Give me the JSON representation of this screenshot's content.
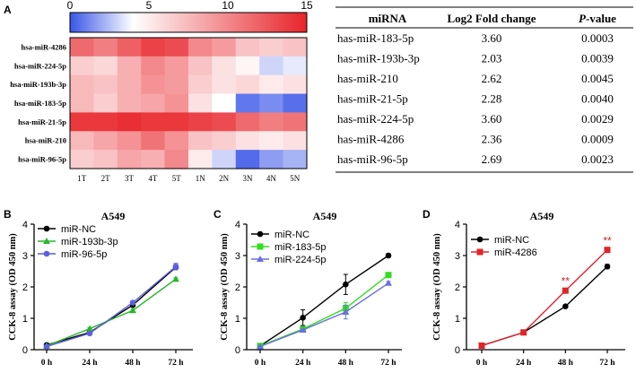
{
  "panel_letters": {
    "a": "A",
    "b": "B",
    "c": "C",
    "d": "D"
  },
  "table": {
    "headers": {
      "mirna": "miRNA",
      "fold": "Log2 Fold change",
      "p_prefix": "P",
      "p_suffix": "-value"
    },
    "rows": [
      {
        "mirna": "has-miR-183-5p",
        "fold": "3.60",
        "p": "0.0003"
      },
      {
        "mirna": "has-miR-193b-3p",
        "fold": "2.03",
        "p": "0.0039"
      },
      {
        "mirna": "has-miR-210",
        "fold": "2.62",
        "p": "0.0045"
      },
      {
        "mirna": "has-miR-21-5p",
        "fold": "2.28",
        "p": "0.0040"
      },
      {
        "mirna": "has-miR-224-5p",
        "fold": "3.60",
        "p": "0.0029"
      },
      {
        "mirna": "has-miR-4286",
        "fold": "2.36",
        "p": "0.0009"
      },
      {
        "mirna": "has-miR-96-5p",
        "fold": "2.69",
        "p": "0.0023"
      }
    ]
  },
  "chart_data": [
    {
      "type": "heatmap",
      "panel": "A",
      "colorbar": {
        "ticks": [
          "0",
          "5",
          "10",
          "15"
        ],
        "range": [
          0,
          15
        ],
        "low_color": "#3a55e8",
        "mid_color": "#ffffff",
        "high_color": "#e8242a",
        "mid_value": 4
      },
      "rows": [
        "hsa-miR-4286",
        "hsa-miR-224-5p",
        "hsa-miR-193b-3p",
        "hsa-miR-183-5p",
        "hsa-miR-21-5p",
        "hsa-miR-210",
        "hsa-miR-96-5p"
      ],
      "columns": [
        "1T",
        "2T",
        "3T",
        "4T",
        "5T",
        "1N",
        "2N",
        "3N",
        "4N",
        "5N"
      ],
      "values": [
        [
          11.5,
          10.5,
          12,
          13.5,
          13,
          10,
          9,
          7,
          6.5,
          7
        ],
        [
          6.5,
          6,
          8,
          10,
          9,
          7,
          5.5,
          4.5,
          3,
          3.5
        ],
        [
          7.5,
          7,
          8,
          9.5,
          9,
          6.5,
          5.5,
          6,
          5,
          5.5
        ],
        [
          7.5,
          6.5,
          8,
          8.5,
          9.5,
          5.5,
          4,
          0.8,
          1.3,
          0.6
        ],
        [
          14,
          14,
          14.5,
          14,
          14,
          13.5,
          13,
          11.5,
          10.5,
          11
        ],
        [
          7.5,
          8.5,
          9.5,
          11,
          9.5,
          7,
          6.5,
          5.5,
          5,
          5.5
        ],
        [
          6.5,
          7,
          8.5,
          8,
          10,
          5,
          3,
          0.5,
          1.7,
          2.2
        ]
      ]
    },
    {
      "type": "line",
      "panel": "B",
      "title": "A549",
      "ylabel": "CCK-8 assay (OD 450 nm)",
      "categories": [
        "0 h",
        "24 h",
        "48 h",
        "72 h"
      ],
      "ylim": [
        0,
        4
      ],
      "yticks": [
        "0",
        "1",
        "2",
        "3",
        "4"
      ],
      "series": [
        {
          "name": "miR-NC",
          "color": "#000000",
          "marker": "circle",
          "values": [
            0.15,
            0.55,
            1.42,
            2.63
          ],
          "errors": [
            0.03,
            0.03,
            0.05,
            0.08
          ]
        },
        {
          "name": "miR-193b-3p",
          "color": "#2db52d",
          "marker": "triangle",
          "values": [
            0.12,
            0.67,
            1.25,
            2.25
          ],
          "errors": [
            0.02,
            0.03,
            0.04,
            0.04
          ]
        },
        {
          "name": "miR-96-5p",
          "color": "#5c5fe0",
          "marker": "circle",
          "values": [
            0.1,
            0.52,
            1.5,
            2.65
          ],
          "errors": [
            0.02,
            0.03,
            0.06,
            0.1
          ]
        }
      ]
    },
    {
      "type": "line",
      "panel": "C",
      "title": "A549",
      "ylabel": "CCK-8 assay (OD 450 nm)",
      "categories": [
        "0 h",
        "24 h",
        "48 h",
        "72 h"
      ],
      "ylim": [
        0,
        4
      ],
      "yticks": [
        "0",
        "1",
        "2",
        "3",
        "4"
      ],
      "series": [
        {
          "name": "miR-NC",
          "color": "#000000",
          "marker": "circle",
          "values": [
            0.12,
            1.02,
            2.08,
            3.0
          ],
          "errors": [
            0.03,
            0.25,
            0.32,
            0.06
          ]
        },
        {
          "name": "miR-183-5p",
          "color": "#33dd22",
          "marker": "square",
          "values": [
            0.12,
            0.66,
            1.32,
            2.38
          ],
          "errors": [
            0.02,
            0.03,
            0.18,
            0.05
          ]
        },
        {
          "name": "miR-224-5p",
          "color": "#6a6fe0",
          "marker": "triangle",
          "values": [
            0.1,
            0.63,
            1.2,
            2.12
          ],
          "errors": [
            0.02,
            0.03,
            0.22,
            0.05
          ]
        }
      ]
    },
    {
      "type": "line",
      "panel": "D",
      "title": "A549",
      "ylabel": "CCK-8 assay (OD 450 nm)",
      "categories": [
        "0 h",
        "24 h",
        "48 h",
        "72 h"
      ],
      "ylim": [
        0,
        4
      ],
      "yticks": [
        "0",
        "1",
        "2",
        "3",
        "4"
      ],
      "annotations": [
        {
          "category": "48 h",
          "text": "**"
        },
        {
          "category": "72 h",
          "text": "**"
        }
      ],
      "series": [
        {
          "name": "miR-NC",
          "color": "#000000",
          "marker": "circle",
          "values": [
            0.13,
            0.55,
            1.38,
            2.65
          ],
          "errors": [
            0.02,
            0.02,
            0.04,
            0.07
          ]
        },
        {
          "name": "miR-4286",
          "color": "#e0242a",
          "marker": "square",
          "values": [
            0.13,
            0.55,
            1.88,
            3.18
          ],
          "errors": [
            0.02,
            0.02,
            0.08,
            0.06
          ]
        }
      ]
    }
  ]
}
